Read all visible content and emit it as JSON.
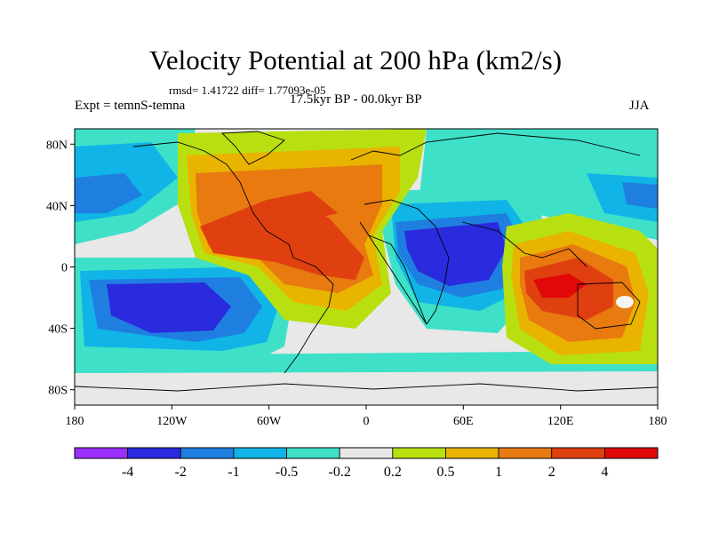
{
  "title": "Velocity Potential at 200 hPa (km2/s)",
  "stats": "rmsd= 1.41722 diff= 1.77093e-05",
  "left_label": "Expt = temnS-temna",
  "center_label": "17.5kyr BP - 00.0kyr BP",
  "right_label": "JJA",
  "map": {
    "projection": "cylindrical equidistant",
    "lon_range": [
      -180,
      180
    ],
    "lat_range": [
      -90,
      90
    ],
    "lat_ticks": [
      {
        "lat": 80,
        "label": "80N"
      },
      {
        "lat": 40,
        "label": "40N"
      },
      {
        "lat": 0,
        "label": "0"
      },
      {
        "lat": -40,
        "label": "40S"
      },
      {
        "lat": -80,
        "label": "80S"
      }
    ],
    "lon_ticks": [
      {
        "lon": -180,
        "label": "180"
      },
      {
        "lon": -120,
        "label": "120W"
      },
      {
        "lon": -60,
        "label": "60W"
      },
      {
        "lon": 0,
        "label": "0"
      },
      {
        "lon": 60,
        "label": "60E"
      },
      {
        "lon": 120,
        "label": "120E"
      },
      {
        "lon": 180,
        "label": "180"
      }
    ]
  },
  "colorbar": {
    "colors": [
      "#9b30ff",
      "#2a2adf",
      "#1f7fe0",
      "#10b4e6",
      "#3ee0c8",
      "#e8e8e8",
      "#b8e010",
      "#e8b400",
      "#e87a10",
      "#e04010",
      "#e00808"
    ],
    "labels": [
      "-4",
      "-2",
      "-1",
      "-0.5",
      "-0.2",
      "0.2",
      "0.5",
      "1",
      "2",
      "4"
    ]
  }
}
